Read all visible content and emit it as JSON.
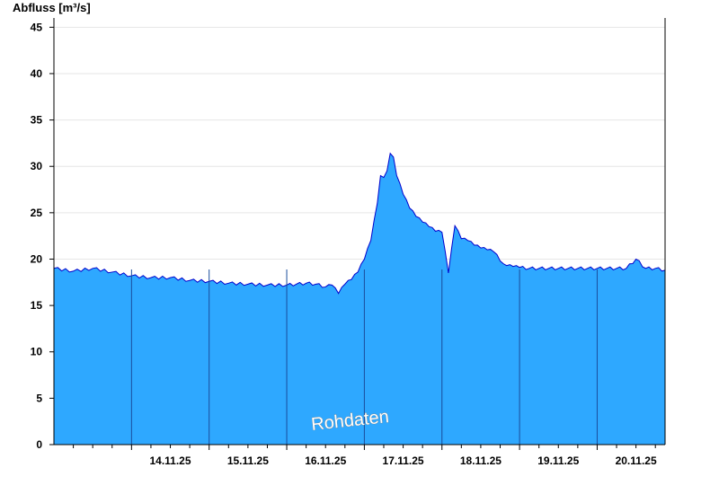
{
  "chart_data": {
    "type": "area",
    "ylabel": "Abfluss [m³/s]",
    "ylim": [
      0,
      46
    ],
    "yticks": [
      0,
      5,
      10,
      15,
      20,
      25,
      30,
      35,
      40,
      45
    ],
    "xlim": [
      "13.11.25 00:00",
      "20.11.25 21:00"
    ],
    "xtick_labels": [
      "14.11.25",
      "15.11.25",
      "16.11.25",
      "17.11.25",
      "18.11.25",
      "19.11.25",
      "20.11.25"
    ],
    "grid": true,
    "fill_color": "#2ea8ff",
    "line_color": "#0000cc",
    "annotation": "Rohdaten",
    "series": [
      {
        "x": [
          "13.11.25 00:00",
          "13.11.25 06:00",
          "13.11.25 12:00",
          "13.11.25 18:00",
          "14.11.25 00:00",
          "14.11.25 06:00",
          "14.11.25 12:00",
          "14.11.25 18:00",
          "15.11.25 00:00",
          "15.11.25 06:00",
          "15.11.25 12:00",
          "15.11.25 18:00",
          "16.11.25 00:00",
          "16.11.25 03:00",
          "16.11.25 06:00",
          "16.11.25 09:00",
          "16.11.25 12:00",
          "16.11.25 14:00",
          "16.11.25 16:00",
          "16.11.25 18:00",
          "16.11.25 20:00",
          "16.11.25 22:00",
          "17.11.25 00:00",
          "17.11.25 02:00",
          "17.11.25 04:00",
          "17.11.25 05:00",
          "17.11.25 06:00",
          "17.11.25 07:00",
          "17.11.25 08:00",
          "17.11.25 09:00",
          "17.11.25 10:00",
          "17.11.25 12:00",
          "17.11.25 14:00",
          "17.11.25 16:00",
          "17.11.25 18:00",
          "17.11.25 20:00",
          "17.11.25 22:00",
          "18.11.25 00:00",
          "18.11.25 02:00",
          "18.11.25 04:00",
          "18.11.25 06:00",
          "18.11.25 08:00",
          "18.11.25 10:00",
          "18.11.25 12:00",
          "18.11.25 14:00",
          "18.11.25 16:00",
          "18.11.25 17:00",
          "18.11.25 18:00",
          "18.11.25 19:00",
          "18.11.25 20:00",
          "18.11.25 22:00",
          "19.11.25 00:00",
          "19.11.25 03:00",
          "19.11.25 06:00",
          "19.11.25 09:00",
          "19.11.25 12:00",
          "19.11.25 15:00",
          "19.11.25 18:00",
          "19.11.25 21:00",
          "20.11.25 00:00",
          "20.11.25 03:00",
          "20.11.25 06:00",
          "20.11.25 09:00",
          "20.11.25 12:00",
          "20.11.25 15:00",
          "20.11.25 18:00",
          "20.11.25 21:00"
        ],
        "values": [
          19.0,
          18.7,
          19.0,
          18.6,
          18.2,
          18.0,
          18.0,
          17.7,
          17.6,
          17.4,
          17.3,
          17.2,
          17.2,
          17.3,
          17.4,
          17.3,
          17.0,
          17.2,
          16.3,
          17.3,
          17.8,
          18.6,
          20.0,
          22.0,
          26.0,
          29.0,
          28.8,
          29.5,
          31.4,
          31.0,
          29.0,
          27.0,
          25.5,
          24.6,
          24.0,
          23.5,
          23.0,
          22.9,
          18.5,
          23.6,
          22.2,
          22.0,
          21.5,
          21.2,
          21.0,
          20.8,
          20.5,
          19.8,
          19.5,
          19.3,
          19.2,
          19.1,
          19.0,
          19.0,
          19.0,
          19.0,
          19.0,
          19.0,
          19.0,
          19.0,
          19.0,
          19.0,
          19.0,
          20.0,
          19.0,
          19.0,
          18.8
        ]
      }
    ]
  }
}
